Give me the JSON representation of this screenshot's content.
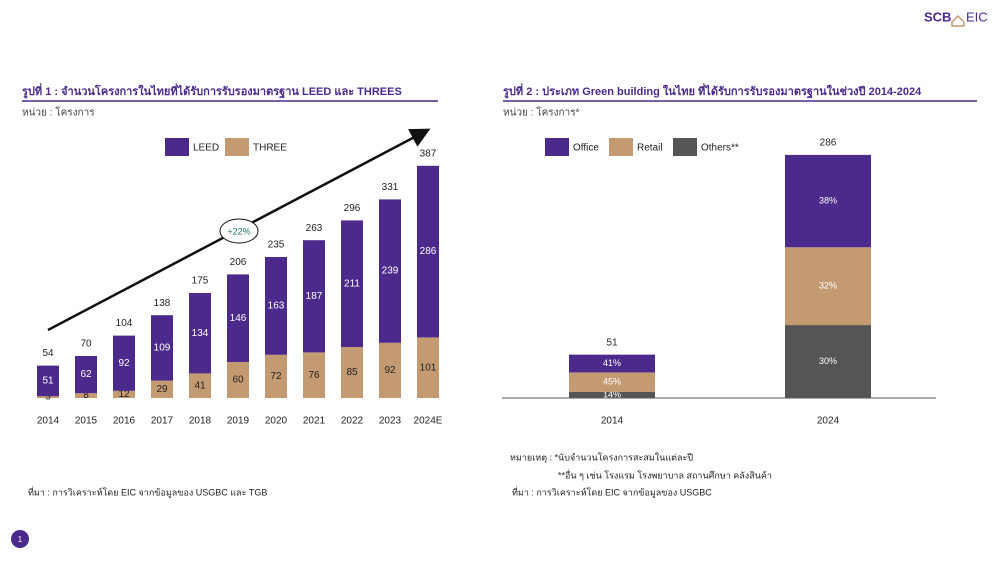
{
  "logo": {
    "left": "SCB",
    "right": "EIC"
  },
  "page_number": "1",
  "chart_data": [
    {
      "type": "stacked_bar",
      "title": "รูปที่ 1 : จำนวนโครงการในไทยที่ได้รับการรับรองมาตรฐาน LEED และ THREES",
      "subtitle": "หน่วย : โครงการ",
      "categories": [
        "2014",
        "2015",
        "2016",
        "2017",
        "2018",
        "2019",
        "2020",
        "2021",
        "2022",
        "2023",
        "2024E"
      ],
      "series": [
        {
          "name": "LEED",
          "color": "#4b2a8c",
          "values": [
            51,
            62,
            92,
            109,
            134,
            146,
            163,
            187,
            211,
            239,
            286
          ]
        },
        {
          "name": "THREE",
          "color": "#c49a72",
          "values": [
            3,
            8,
            12,
            29,
            41,
            60,
            72,
            76,
            85,
            92,
            101
          ]
        }
      ],
      "totals": [
        54,
        70,
        104,
        138,
        175,
        206,
        235,
        263,
        296,
        331,
        387
      ],
      "annotation": "+22%",
      "source": "ที่มา : การวิเคราะห์โดย EIC จากข้อมูลของ USGBC และ TGB"
    },
    {
      "type": "percent_stacked_bar",
      "title": "รูปที่ 2 : ประเภท Green building ในไทย ที่ได้รับการรับรองมาตรฐานในช่วงปี 2014-2024",
      "subtitle": "หน่วย : โครงการ*",
      "categories": [
        "2014",
        "2024"
      ],
      "series": [
        {
          "name": "Office",
          "color": "#4b2a8c",
          "values": [
            41,
            38
          ],
          "value_labels": [
            "41%",
            "38%"
          ]
        },
        {
          "name": "Retail",
          "color": "#c49a72",
          "values": [
            45,
            32
          ],
          "value_labels": [
            "45%",
            "32%"
          ]
        },
        {
          "name": "Others**",
          "color": "#555555",
          "values": [
            14,
            30
          ],
          "value_labels": [
            "14%",
            "30%"
          ]
        }
      ],
      "totals": [
        51,
        286
      ],
      "notes": [
        "หมายเหตุ : *นับจำนวนโครงการสะสมในแต่ละปี",
        "**อื่น ๆ เช่น โรงแรม โรงพยาบาล สถานศึกษา คลังสินค้า"
      ],
      "source": "ที่มา : การวิเคราะห์โดย EIC จากข้อมูลของ USGBC"
    }
  ]
}
